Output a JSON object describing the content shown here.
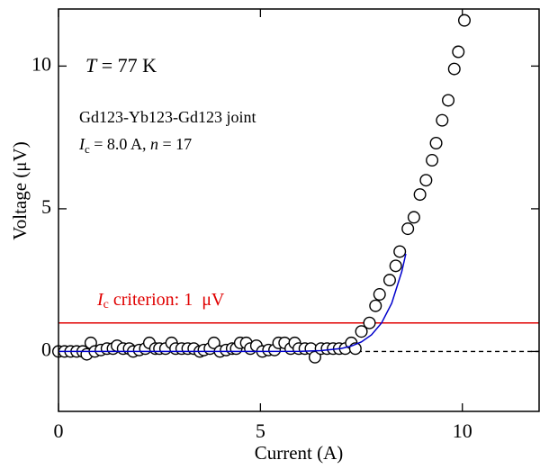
{
  "chart_data": {
    "type": "scatter",
    "x_label": "Current (A)",
    "y_label": "Voltage (μV)",
    "xlim": [
      0,
      11.9
    ],
    "ylim": [
      -2.1,
      12
    ],
    "xticks": [
      0,
      5,
      10
    ],
    "yticks": [
      0,
      5,
      10
    ],
    "temperature_label": [
      "T",
      " = 77 K"
    ],
    "sample_label": "Gd123-Yb123-Gd123 joint",
    "fit_label": [
      "I",
      "c",
      " = 8.0 A, ",
      "n",
      " = 17"
    ],
    "criterion": {
      "value": 1,
      "label": [
        "I",
        "c",
        " criterion: 1  μV"
      ],
      "color": "#e00000"
    },
    "zero_line": {
      "value": 0,
      "from_x": 7.4
    },
    "series": [
      {
        "name": "measured",
        "color": "#000000",
        "x": [
          0.0,
          0.15,
          0.3,
          0.45,
          0.6,
          0.7,
          0.8,
          0.9,
          1.05,
          1.2,
          1.35,
          1.45,
          1.6,
          1.75,
          1.85,
          2.0,
          2.15,
          2.25,
          2.4,
          2.5,
          2.65,
          2.8,
          2.9,
          3.05,
          3.2,
          3.35,
          3.5,
          3.6,
          3.75,
          3.85,
          4.0,
          4.15,
          4.3,
          4.4,
          4.5,
          4.65,
          4.75,
          4.9,
          5.05,
          5.2,
          5.35,
          5.45,
          5.6,
          5.75,
          5.85,
          5.95,
          6.1,
          6.25,
          6.35,
          6.5,
          6.65,
          6.8,
          6.95,
          7.1,
          7.25,
          7.35,
          7.5,
          7.7,
          7.85,
          7.95,
          8.2,
          8.35,
          8.45,
          8.65,
          8.8,
          8.95,
          9.1,
          9.25,
          9.35,
          9.5,
          9.65,
          9.8,
          9.9,
          10.05
        ],
        "values": [
          0,
          0,
          0,
          0,
          0,
          -0.1,
          0.3,
          0,
          0.05,
          0.1,
          0.1,
          0.2,
          0.1,
          0.1,
          0,
          0.05,
          0.1,
          0.3,
          0.1,
          0.1,
          0.1,
          0.3,
          0.1,
          0.1,
          0.1,
          0.1,
          0,
          0.05,
          0.1,
          0.3,
          0,
          0.05,
          0.1,
          0.1,
          0.3,
          0.3,
          0.1,
          0.2,
          0,
          0.05,
          0.05,
          0.3,
          0.3,
          0.1,
          0.3,
          0.1,
          0.1,
          0.1,
          -0.2,
          0.1,
          0.1,
          0.1,
          0.1,
          0.1,
          0.3,
          0.1,
          0.7,
          1.0,
          1.6,
          2.0,
          2.5,
          3.0,
          3.5,
          4.3,
          4.7,
          5.5,
          6.0,
          6.7,
          7.3,
          8.1,
          8.8,
          9.9,
          10.5,
          11.6
        ]
      },
      {
        "name": "fit",
        "color": "#0000cc",
        "x": [
          0,
          5,
          6,
          6.5,
          7,
          7.25,
          7.5,
          7.75,
          8,
          8.25,
          8.5,
          8.6
        ],
        "values": [
          0,
          0,
          0.0075,
          0.029,
          0.103,
          0.188,
          0.334,
          0.583,
          1,
          1.687,
          2.8,
          3.42
        ]
      }
    ]
  }
}
